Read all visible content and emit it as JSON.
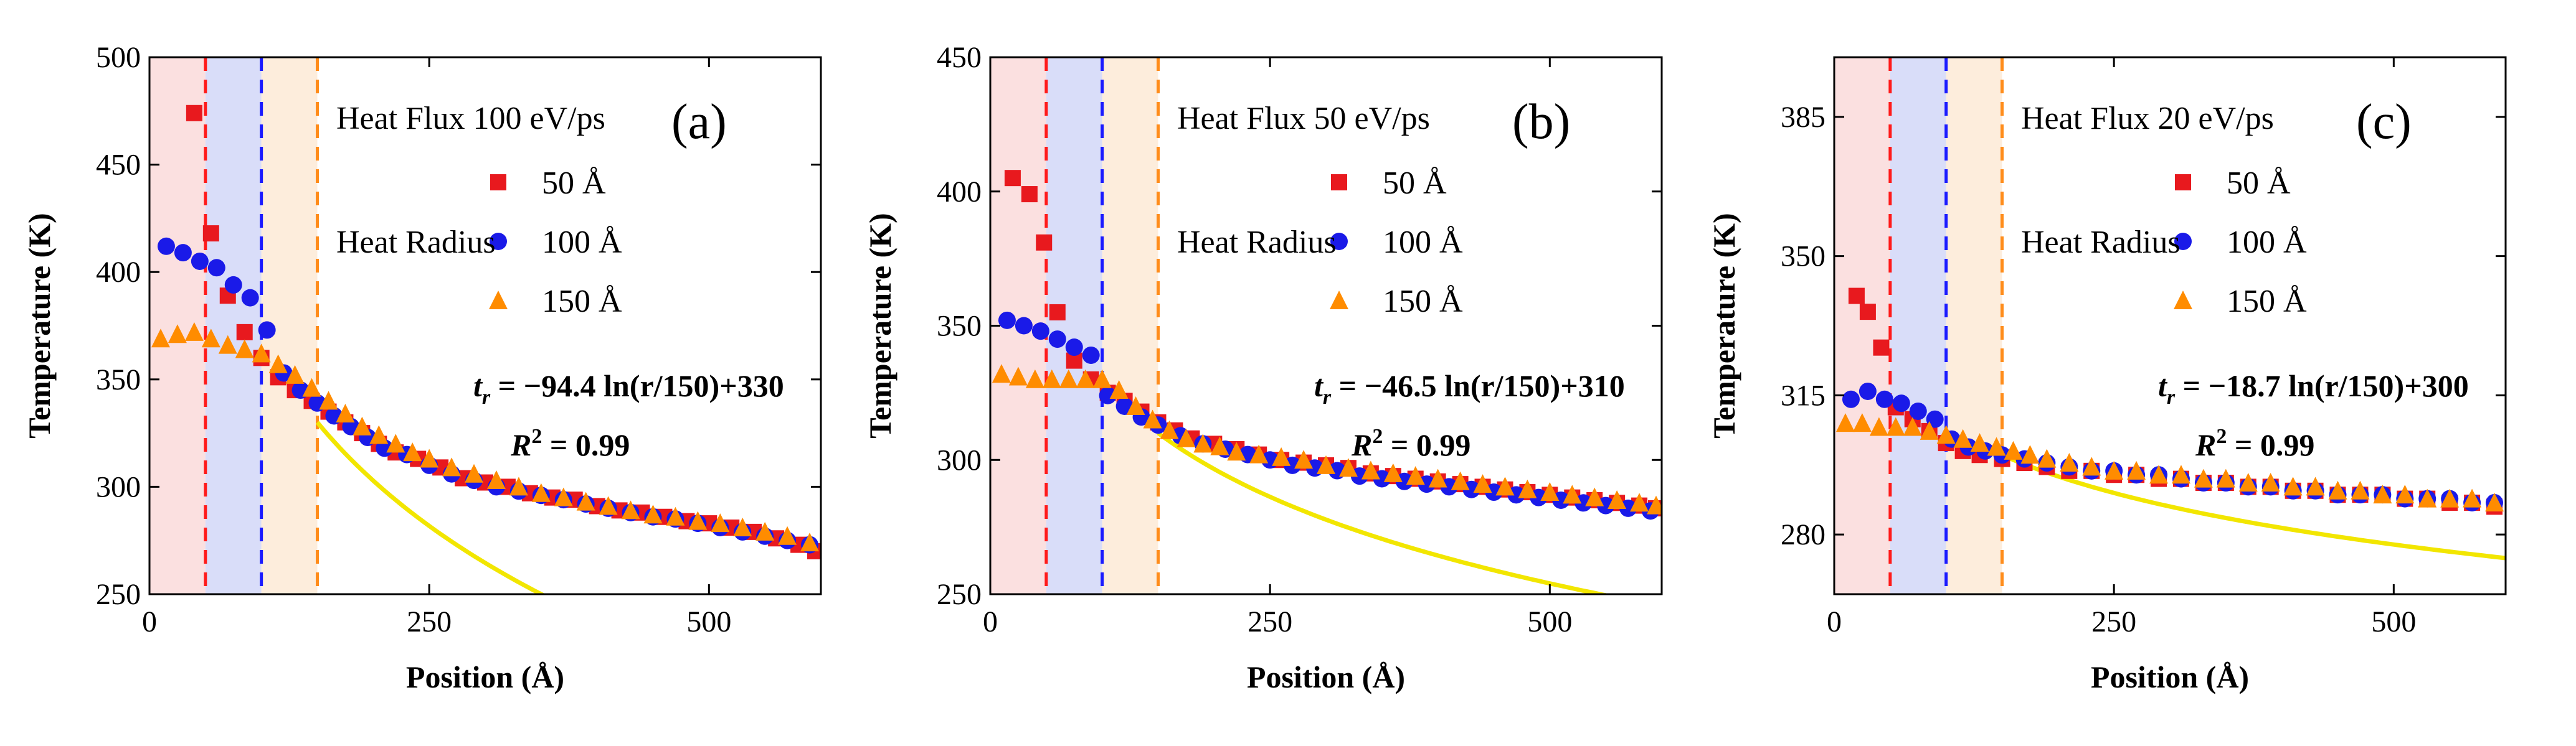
{
  "chart_data": [
    {
      "type": "scatter",
      "panel_label": "(a)",
      "title": "Heat Flux 100 eV/ps",
      "legend_title": "Heat Radius",
      "xlabel": "Position (Å)",
      "ylabel": "Temperature (K)",
      "xlim": [
        0,
        600
      ],
      "ylim": [
        250,
        500
      ],
      "xticks": [
        0,
        250,
        500
      ],
      "yticks": [
        250,
        300,
        350,
        400,
        450,
        500
      ],
      "equation": {
        "lhs": "t",
        "sub": "r",
        "rhs": " = −94.4 ln(r/150)+330"
      },
      "r2": {
        "base": "R",
        "sup": "2",
        "rest": " = 0.99"
      },
      "shaded_regions": [
        {
          "from": 0,
          "to": 50,
          "color": "#f4a6a6",
          "opacity": 0.35
        },
        {
          "from": 50,
          "to": 100,
          "color": "#aab4f2",
          "opacity": 0.45
        },
        {
          "from": 100,
          "to": 150,
          "color": "#f8cc9c",
          "opacity": 0.35
        }
      ],
      "dashed_lines": [
        {
          "x": 50,
          "color": "#ff1a1a"
        },
        {
          "x": 100,
          "color": "#1a1aff"
        },
        {
          "x": 150,
          "color": "#ff8c1a"
        }
      ],
      "fit_curve": {
        "color": "#f2e600",
        "x": [
          150,
          600
        ],
        "formula": "-94.4*ln(x/150)+330",
        "note": "drawn from x=150"
      },
      "series": [
        {
          "name": "50 Å",
          "marker": "square",
          "color": "#e8191e",
          "x": [
            40,
            55,
            70,
            85,
            100,
            115,
            130,
            145,
            160,
            175,
            190,
            205,
            220,
            240,
            260,
            280,
            300,
            320,
            340,
            360,
            380,
            400,
            420,
            440,
            460,
            480,
            500,
            520,
            540,
            560,
            580,
            595
          ],
          "y": [
            474,
            418,
            389,
            372,
            360,
            351,
            345,
            340,
            335,
            330,
            325,
            320,
            316,
            313,
            309,
            304,
            302,
            300,
            297,
            295,
            294,
            291,
            289,
            288,
            286,
            284,
            283,
            281,
            279,
            276,
            273,
            270
          ]
        },
        {
          "name": "100 Å",
          "marker": "circle",
          "color": "#1a1ae8",
          "x": [
            15,
            30,
            45,
            60,
            75,
            90,
            105,
            120,
            135,
            150,
            165,
            180,
            195,
            210,
            230,
            250,
            270,
            290,
            310,
            330,
            350,
            370,
            390,
            410,
            430,
            450,
            470,
            490,
            510,
            530,
            550,
            570,
            590
          ],
          "y": [
            412,
            409,
            405,
            402,
            394,
            388,
            373,
            353,
            345,
            339,
            333,
            328,
            323,
            318,
            315,
            310,
            306,
            303,
            300,
            298,
            296,
            294,
            292,
            290,
            288,
            286,
            285,
            283,
            281,
            279,
            277,
            275,
            273
          ]
        },
        {
          "name": "150 Å",
          "marker": "triangle",
          "color": "#ff8c00",
          "x": [
            10,
            25,
            40,
            55,
            70,
            85,
            100,
            115,
            130,
            145,
            160,
            175,
            190,
            205,
            220,
            235,
            250,
            270,
            290,
            310,
            330,
            350,
            370,
            390,
            410,
            430,
            450,
            470,
            490,
            510,
            530,
            550,
            570,
            590
          ],
          "y": [
            369,
            371,
            372,
            369,
            366,
            364,
            362,
            357,
            352,
            346,
            340,
            334,
            328,
            324,
            320,
            316,
            313,
            309,
            306,
            303,
            300,
            297,
            295,
            293,
            291,
            289,
            287,
            286,
            284,
            283,
            281,
            279,
            277,
            274
          ]
        }
      ]
    },
    {
      "type": "scatter",
      "panel_label": "(b)",
      "title": "Heat Flux 50 eV/ps",
      "legend_title": "Heat Radius",
      "xlabel": "Position (Å)",
      "ylabel": "Temperature (K)",
      "xlim": [
        0,
        600
      ],
      "ylim": [
        250,
        450
      ],
      "xticks": [
        0,
        250,
        500
      ],
      "yticks": [
        250,
        300,
        350,
        400,
        450
      ],
      "equation": {
        "lhs": "t",
        "sub": "r",
        "rhs": " = −46.5 ln(r/150)+310"
      },
      "r2": {
        "base": "R",
        "sup": "2",
        "rest": " = 0.99"
      },
      "shaded_regions": [
        {
          "from": 0,
          "to": 50,
          "color": "#f4a6a6",
          "opacity": 0.35
        },
        {
          "from": 50,
          "to": 100,
          "color": "#aab4f2",
          "opacity": 0.45
        },
        {
          "from": 100,
          "to": 150,
          "color": "#f8cc9c",
          "opacity": 0.35
        }
      ],
      "dashed_lines": [
        {
          "x": 50,
          "color": "#ff1a1a"
        },
        {
          "x": 100,
          "color": "#1a1aff"
        },
        {
          "x": 150,
          "color": "#ff8c1a"
        }
      ],
      "fit_curve": {
        "color": "#f2e600",
        "x": [
          150,
          600
        ],
        "formula": "-46.5*ln(x/150)+310",
        "note": "drawn from x=150"
      },
      "series": [
        {
          "name": "50 Å",
          "marker": "square",
          "color": "#e8191e",
          "x": [
            20,
            35,
            48,
            60,
            75,
            90,
            105,
            120,
            135,
            150,
            165,
            180,
            200,
            220,
            240,
            260,
            280,
            300,
            320,
            340,
            360,
            380,
            400,
            420,
            440,
            460,
            480,
            500,
            520,
            540,
            560,
            580,
            595
          ],
          "y": [
            405,
            399,
            381,
            355,
            337,
            330,
            325,
            322,
            318,
            314,
            311,
            308,
            306,
            304,
            302,
            300,
            299,
            298,
            297,
            295,
            294,
            293,
            292,
            291,
            290,
            289,
            288,
            287,
            286,
            285,
            284,
            283,
            282
          ]
        },
        {
          "name": "100 Å",
          "marker": "circle",
          "color": "#1a1ae8",
          "x": [
            15,
            30,
            45,
            60,
            75,
            90,
            105,
            120,
            135,
            150,
            170,
            190,
            210,
            230,
            250,
            270,
            290,
            310,
            330,
            350,
            370,
            390,
            410,
            430,
            450,
            470,
            490,
            510,
            530,
            550,
            570,
            590
          ],
          "y": [
            352,
            350,
            348,
            345,
            342,
            339,
            324,
            320,
            316,
            313,
            309,
            306,
            304,
            302,
            300,
            298,
            297,
            296,
            294,
            293,
            292,
            291,
            290,
            289,
            288,
            287,
            286,
            285,
            284,
            283,
            282,
            281
          ]
        },
        {
          "name": "150 Å",
          "marker": "triangle",
          "color": "#ff8c00",
          "x": [
            10,
            25,
            40,
            55,
            70,
            85,
            100,
            115,
            130,
            145,
            160,
            175,
            190,
            205,
            220,
            240,
            260,
            280,
            300,
            320,
            340,
            360,
            380,
            400,
            420,
            440,
            460,
            480,
            500,
            520,
            540,
            560,
            580,
            595
          ],
          "y": [
            332,
            331,
            330,
            330,
            330,
            330,
            330,
            326,
            320,
            315,
            311,
            308,
            306,
            305,
            303,
            302,
            301,
            300,
            298,
            297,
            296,
            295,
            294,
            293,
            292,
            291,
            290,
            289,
            288,
            287,
            286,
            285,
            284,
            283
          ]
        }
      ]
    },
    {
      "type": "scatter",
      "panel_label": "(c)",
      "title": "Heat Flux 20 eV/ps",
      "legend_title": "Heat Radius",
      "xlabel": "Position (Å)",
      "ylabel": "Temperature (K)",
      "xlim": [
        0,
        600
      ],
      "ylim": [
        265,
        400
      ],
      "xticks": [
        0,
        250,
        500
      ],
      "yticks": [
        280,
        315,
        350,
        385
      ],
      "equation": {
        "lhs": "t",
        "sub": "r",
        "rhs": " = −18.7 ln(r/150)+300"
      },
      "r2": {
        "base": "R",
        "sup": "2",
        "rest": " = 0.99"
      },
      "shaded_regions": [
        {
          "from": 0,
          "to": 50,
          "color": "#f4a6a6",
          "opacity": 0.35
        },
        {
          "from": 50,
          "to": 100,
          "color": "#aab4f2",
          "opacity": 0.45
        },
        {
          "from": 100,
          "to": 150,
          "color": "#f8cc9c",
          "opacity": 0.35
        }
      ],
      "dashed_lines": [
        {
          "x": 50,
          "color": "#ff1a1a"
        },
        {
          "x": 100,
          "color": "#1a1aff"
        },
        {
          "x": 150,
          "color": "#ff8c1a"
        }
      ],
      "fit_curve": {
        "color": "#f2e600",
        "x": [
          150,
          600
        ],
        "formula": "-18.7*ln(x/150)+300",
        "note": "drawn from x=150"
      },
      "series": [
        {
          "name": "50 Å",
          "marker": "square",
          "color": "#e8191e",
          "x": [
            20,
            30,
            42,
            55,
            70,
            85,
            100,
            115,
            130,
            150,
            170,
            190,
            210,
            230,
            250,
            270,
            290,
            310,
            330,
            350,
            370,
            390,
            410,
            430,
            450,
            470,
            490,
            510,
            530,
            550,
            570,
            590
          ],
          "y": [
            340,
            336,
            327,
            312,
            309,
            306,
            303,
            301,
            300,
            299,
            298,
            297,
            296,
            296,
            295,
            295,
            294,
            294,
            293,
            293,
            292,
            292,
            291,
            291,
            290,
            290,
            290,
            289,
            289,
            288,
            288,
            287
          ]
        },
        {
          "name": "100 Å",
          "marker": "circle",
          "color": "#1a1ae8",
          "x": [
            15,
            30,
            45,
            60,
            75,
            90,
            105,
            120,
            135,
            150,
            170,
            190,
            210,
            230,
            250,
            270,
            290,
            310,
            330,
            350,
            370,
            390,
            410,
            430,
            450,
            470,
            490,
            510,
            530,
            550,
            570,
            590
          ],
          "y": [
            314,
            316,
            314,
            313,
            311,
            309,
            304,
            302,
            301,
            300,
            299,
            298,
            297,
            296,
            296,
            295,
            295,
            294,
            293,
            293,
            292,
            292,
            291,
            291,
            290,
            290,
            290,
            289,
            289,
            289,
            288,
            288
          ]
        },
        {
          "name": "150 Å",
          "marker": "triangle",
          "color": "#ff8c00",
          "x": [
            10,
            25,
            40,
            55,
            70,
            85,
            100,
            115,
            130,
            145,
            160,
            175,
            190,
            210,
            230,
            250,
            270,
            290,
            310,
            330,
            350,
            370,
            390,
            410,
            430,
            450,
            470,
            490,
            510,
            530,
            550,
            570,
            590
          ],
          "y": [
            308,
            308,
            307,
            307,
            307,
            306,
            305,
            304,
            303,
            302,
            301,
            300,
            299,
            298,
            297,
            296,
            296,
            295,
            295,
            294,
            294,
            293,
            293,
            292,
            292,
            291,
            291,
            290,
            290,
            289,
            289,
            289,
            288
          ]
        }
      ]
    }
  ]
}
